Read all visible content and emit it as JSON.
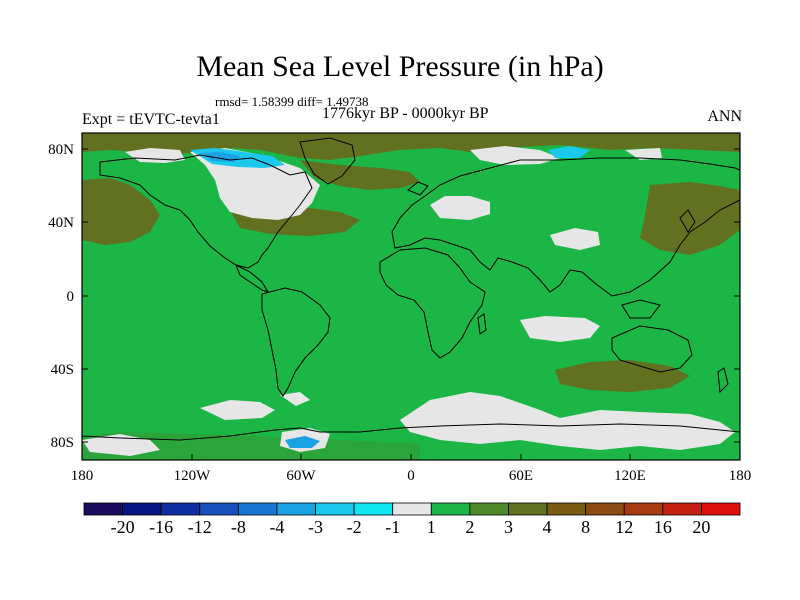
{
  "title": "Mean Sea Level Pressure (in hPa)",
  "stats": "rmsd= 1.58399  diff= 1.49738",
  "experiment": "Expt = tEVTC-tevta1",
  "period": "1776kyr BP - 0000kyr BP",
  "season": "ANN",
  "lat_labels": [
    "80N",
    "40N",
    "0",
    "40S",
    "80S"
  ],
  "lon_labels": [
    "180",
    "120W",
    "60W",
    "0",
    "60E",
    "120E",
    "180"
  ],
  "colorbar": {
    "labels": [
      "-20",
      "-16",
      "-12",
      "-8",
      "-4",
      "-3",
      "-2",
      "-1",
      "1",
      "2",
      "3",
      "4",
      "8",
      "12",
      "16",
      "20"
    ],
    "colors": [
      "#1a0b5e",
      "#0a1585",
      "#0d2fa3",
      "#1550bd",
      "#1876d0",
      "#1aa2e4",
      "#1bc9ef",
      "#0fe6f2",
      "#e6e6e6",
      "#1bb646",
      "#4e8a2a",
      "#61711f",
      "#7a5c12",
      "#8b4a11",
      "#a83a10",
      "#c32010",
      "#e01010"
    ]
  },
  "colors": {
    "base_field": "#1bb646",
    "coast": "#000000"
  }
}
